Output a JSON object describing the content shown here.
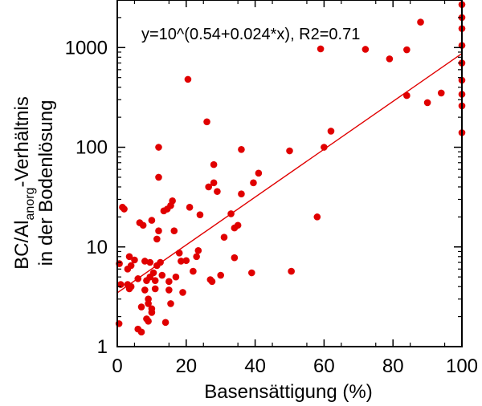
{
  "chart_data": {
    "type": "scatter",
    "title": "",
    "annotation": "y=10^(0.54+0.024*x), R2=0.71",
    "xlabel": "Basensättigung (%)",
    "ylabel_line1_pre": "BC/Al",
    "ylabel_line1_sub": "anorg",
    "ylabel_line1_post": "-Verhältnis",
    "ylabel_line2": "in der Bodenlösung",
    "xlim": [
      0,
      100
    ],
    "ylim": [
      1,
      3000
    ],
    "yscale": "log",
    "grid": false,
    "x_ticks": [
      0,
      20,
      40,
      60,
      80,
      100
    ],
    "x_tick_labels": [
      "0",
      "20",
      "40",
      "60",
      "80",
      "100"
    ],
    "y_ticks": [
      1,
      10,
      100,
      1000
    ],
    "y_tick_labels": [
      "1",
      "10",
      "100",
      "1000"
    ],
    "marker_color": "#e00000",
    "fit_color": "#e00000",
    "fit": {
      "intercept": 0.54,
      "slope": 0.024,
      "x_range": [
        0,
        100
      ]
    },
    "points": [
      [
        0.5,
        1.7
      ],
      [
        0.6,
        6.8
      ],
      [
        1,
        4.2
      ],
      [
        1.5,
        25
      ],
      [
        2,
        24
      ],
      [
        3,
        4.2
      ],
      [
        3,
        6
      ],
      [
        3.5,
        8
      ],
      [
        3.5,
        3.8
      ],
      [
        4,
        4
      ],
      [
        4,
        6.5
      ],
      [
        5,
        7.4
      ],
      [
        6,
        1.5
      ],
      [
        6,
        4.8
      ],
      [
        6.5,
        17.5
      ],
      [
        7,
        1.4
      ],
      [
        7,
        2.5
      ],
      [
        7.5,
        16.5
      ],
      [
        8,
        3.7
      ],
      [
        8,
        7.2
      ],
      [
        8.5,
        1.9
      ],
      [
        8.5,
        4.6
      ],
      [
        9,
        2.7
      ],
      [
        9,
        3
      ],
      [
        9,
        1.8
      ],
      [
        9.5,
        5
      ],
      [
        9.5,
        7
      ],
      [
        10,
        2.2
      ],
      [
        10,
        2.4
      ],
      [
        10,
        18.5
      ],
      [
        10.5,
        5.5
      ],
      [
        11,
        3.8
      ],
      [
        11,
        4.6
      ],
      [
        11.5,
        6.5
      ],
      [
        11.5,
        12
      ],
      [
        12,
        50
      ],
      [
        12,
        100
      ],
      [
        12,
        14.5
      ],
      [
        12.5,
        7
      ],
      [
        13,
        5.2
      ],
      [
        13.5,
        23
      ],
      [
        14,
        1.75
      ],
      [
        14.5,
        24
      ],
      [
        15,
        4.5
      ],
      [
        15,
        3.7
      ],
      [
        15.5,
        26
      ],
      [
        15.5,
        2.7
      ],
      [
        16,
        29
      ],
      [
        16.5,
        14.5
      ],
      [
        17,
        5
      ],
      [
        18,
        8.7
      ],
      [
        18.5,
        7.2
      ],
      [
        19,
        3.5
      ],
      [
        20,
        7.3
      ],
      [
        20.5,
        480
      ],
      [
        21,
        25
      ],
      [
        22,
        5.7
      ],
      [
        23,
        8
      ],
      [
        23.5,
        9.2
      ],
      [
        24,
        21
      ],
      [
        26,
        180
      ],
      [
        26.5,
        40
      ],
      [
        27,
        4.7
      ],
      [
        27.5,
        4.5
      ],
      [
        28,
        44
      ],
      [
        28,
        67
      ],
      [
        29,
        36
      ],
      [
        30,
        5.2
      ],
      [
        31,
        12.5
      ],
      [
        33,
        21.5
      ],
      [
        34,
        7.8
      ],
      [
        34,
        15.5
      ],
      [
        35,
        16.5
      ],
      [
        36,
        95
      ],
      [
        36,
        34
      ],
      [
        39,
        5.5
      ],
      [
        39.5,
        44
      ],
      [
        41,
        55
      ],
      [
        50,
        92
      ],
      [
        50.5,
        5.7
      ],
      [
        58,
        20
      ],
      [
        59,
        970
      ],
      [
        60,
        100
      ],
      [
        62,
        145
      ],
      [
        72,
        960
      ],
      [
        79,
        770
      ],
      [
        84,
        950
      ],
      [
        84,
        330
      ],
      [
        88,
        1800
      ],
      [
        90,
        280
      ],
      [
        94,
        350
      ],
      [
        100,
        2700
      ],
      [
        100,
        2000
      ],
      [
        100,
        1550
      ],
      [
        100,
        1050
      ],
      [
        100,
        700
      ],
      [
        100,
        470
      ],
      [
        100,
        340
      ],
      [
        100,
        260
      ],
      [
        100,
        140
      ]
    ]
  }
}
